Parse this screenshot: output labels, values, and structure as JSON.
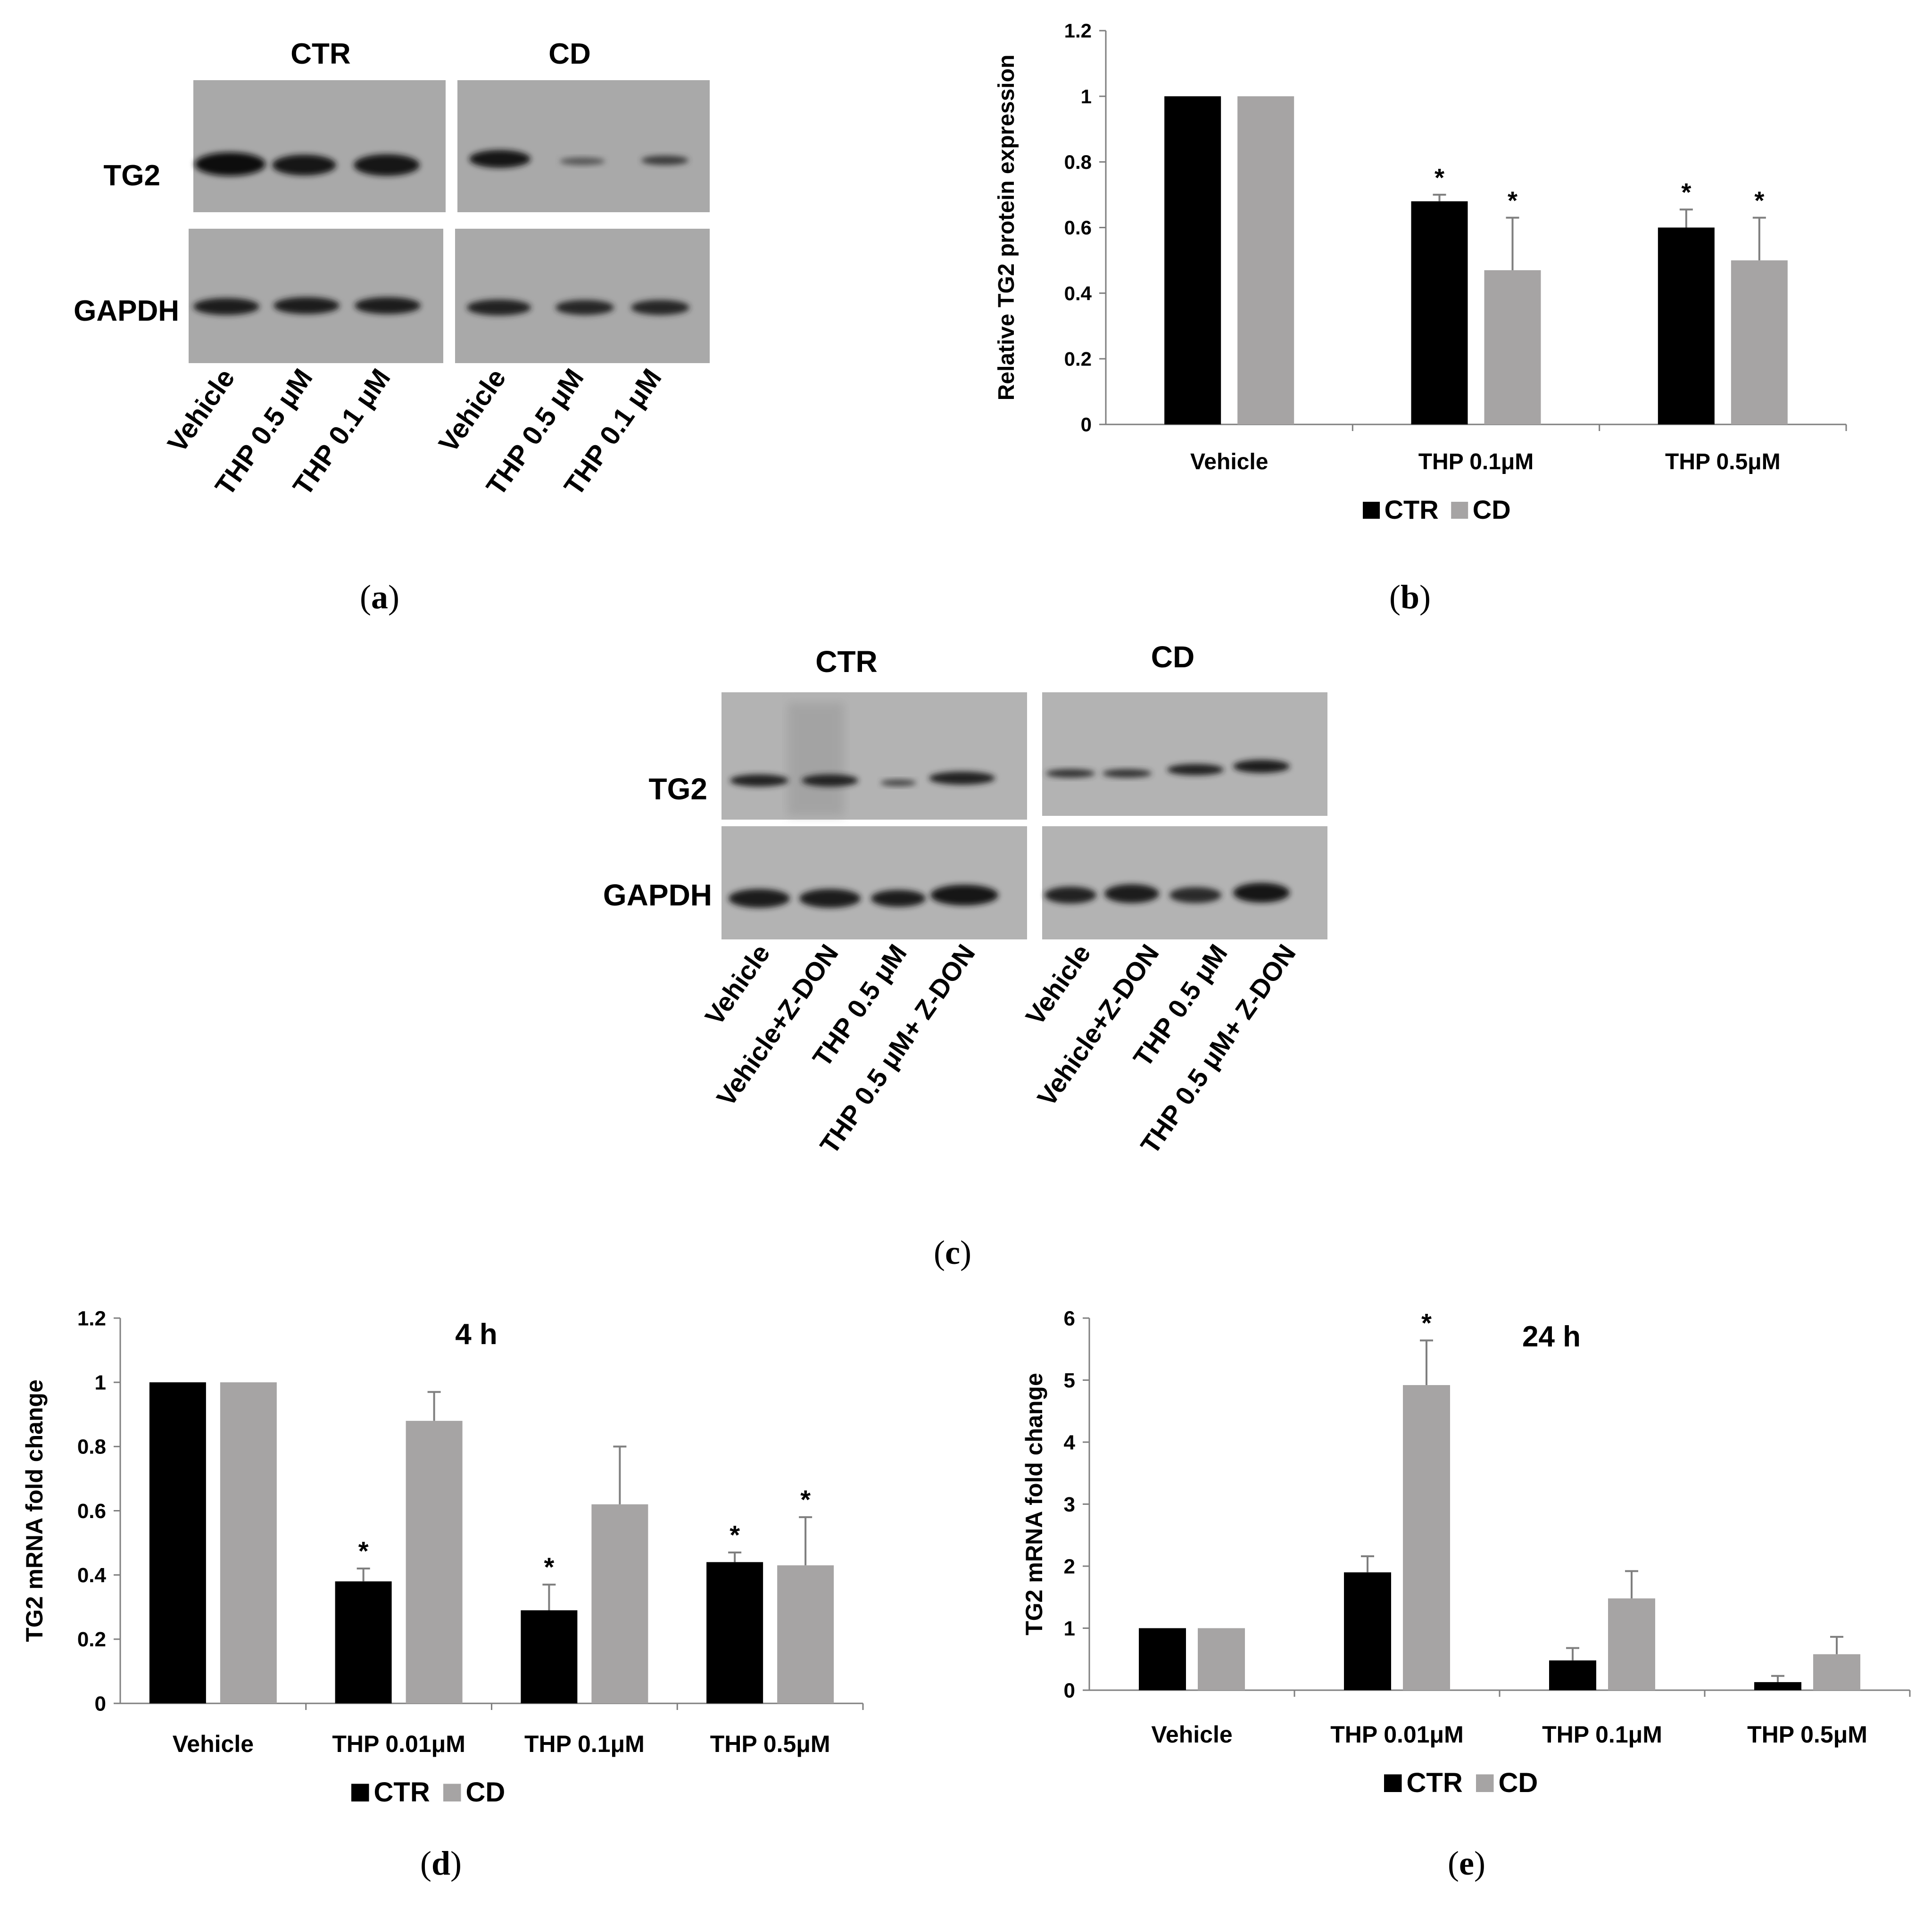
{
  "panels": {
    "a": {
      "caption": "a",
      "groups": [
        "CTR",
        "CD"
      ],
      "rows": [
        "TG2",
        "GAPDH"
      ],
      "lanes": [
        "Vehicle",
        "THP 0.5 μM",
        "THP 0.1 μM",
        "Vehicle",
        "THP 0.5 μM",
        "THP 0.1 μM"
      ]
    },
    "b": {
      "caption": "b"
    },
    "c": {
      "caption": "c",
      "groups": [
        "CTR",
        "CD"
      ],
      "rows": [
        "TG2",
        "GAPDH"
      ],
      "lanes": [
        "Vehicle",
        "Vehicle+Z-DON",
        "THP 0.5 μM",
        "THP 0.5 μM+ Z-DON",
        "Vehicle",
        "Vehicle+Z-DON",
        "THP 0.5 μM",
        "THP 0.5 μM+ Z-DON"
      ]
    },
    "d": {
      "caption": "d"
    },
    "e": {
      "caption": "e"
    }
  },
  "colors": {
    "ctr": "#000000",
    "cd": "#a6a4a4",
    "axis": "#7f7f7f"
  },
  "chart_data": [
    {
      "id": "b",
      "type": "bar",
      "title": "",
      "xlabel": "",
      "ylabel": "Relative TG2 protein expression",
      "categories": [
        "Vehicle",
        "THP 0.1μM",
        "THP 0.5μM"
      ],
      "ylim": [
        0,
        1.2
      ],
      "yticks": [
        "0",
        "0.2",
        "0.4",
        "0.6",
        "0.8",
        "1",
        "1.2"
      ],
      "series": [
        {
          "name": "CTR",
          "values": [
            1.0,
            0.68,
            0.6
          ],
          "errors": [
            0,
            0.02,
            0.055
          ],
          "stars": [
            "",
            "*",
            "*"
          ]
        },
        {
          "name": "CD",
          "values": [
            1.0,
            0.47,
            0.5
          ],
          "errors": [
            0,
            0.16,
            0.13
          ],
          "stars": [
            "",
            "*",
            "*"
          ]
        }
      ],
      "legend": "bottom"
    },
    {
      "id": "d",
      "type": "bar",
      "title": "4 h",
      "xlabel": "",
      "ylabel": "TG2 mRNA fold change",
      "categories": [
        "Vehicle",
        "THP 0.01μM",
        "THP 0.1μM",
        "THP 0.5μM"
      ],
      "ylim": [
        0,
        1.2
      ],
      "yticks": [
        "0",
        "0.2",
        "0.4",
        "0.6",
        "0.8",
        "1",
        "1.2"
      ],
      "series": [
        {
          "name": "CTR",
          "values": [
            1.0,
            0.38,
            0.29,
            0.44
          ],
          "errors": [
            0,
            0.04,
            0.08,
            0.03
          ],
          "stars": [
            "",
            "*",
            "*",
            "*"
          ]
        },
        {
          "name": "CD",
          "values": [
            1.0,
            0.88,
            0.62,
            0.43
          ],
          "errors": [
            0,
            0.09,
            0.18,
            0.15
          ],
          "stars": [
            "",
            "",
            "",
            "*"
          ]
        }
      ],
      "legend": "bottom"
    },
    {
      "id": "e",
      "type": "bar",
      "title": "24 h",
      "xlabel": "",
      "ylabel": "TG2 mRNA fold change",
      "categories": [
        "Vehicle",
        "THP 0.01μM",
        "THP 0.1μM",
        "THP 0.5μM"
      ],
      "ylim": [
        0,
        6
      ],
      "yticks": [
        "0",
        "1",
        "2",
        "3",
        "4",
        "5",
        "6"
      ],
      "series": [
        {
          "name": "CTR",
          "values": [
            1.0,
            1.9,
            0.48,
            0.13
          ],
          "errors": [
            0,
            0.26,
            0.2,
            0.1
          ],
          "stars": [
            "",
            "",
            "",
            ""
          ]
        },
        {
          "name": "CD",
          "values": [
            1.0,
            4.92,
            1.48,
            0.58
          ],
          "errors": [
            0,
            0.72,
            0.44,
            0.28
          ],
          "stars": [
            "",
            "*",
            "",
            ""
          ]
        }
      ],
      "legend": "bottom"
    }
  ]
}
